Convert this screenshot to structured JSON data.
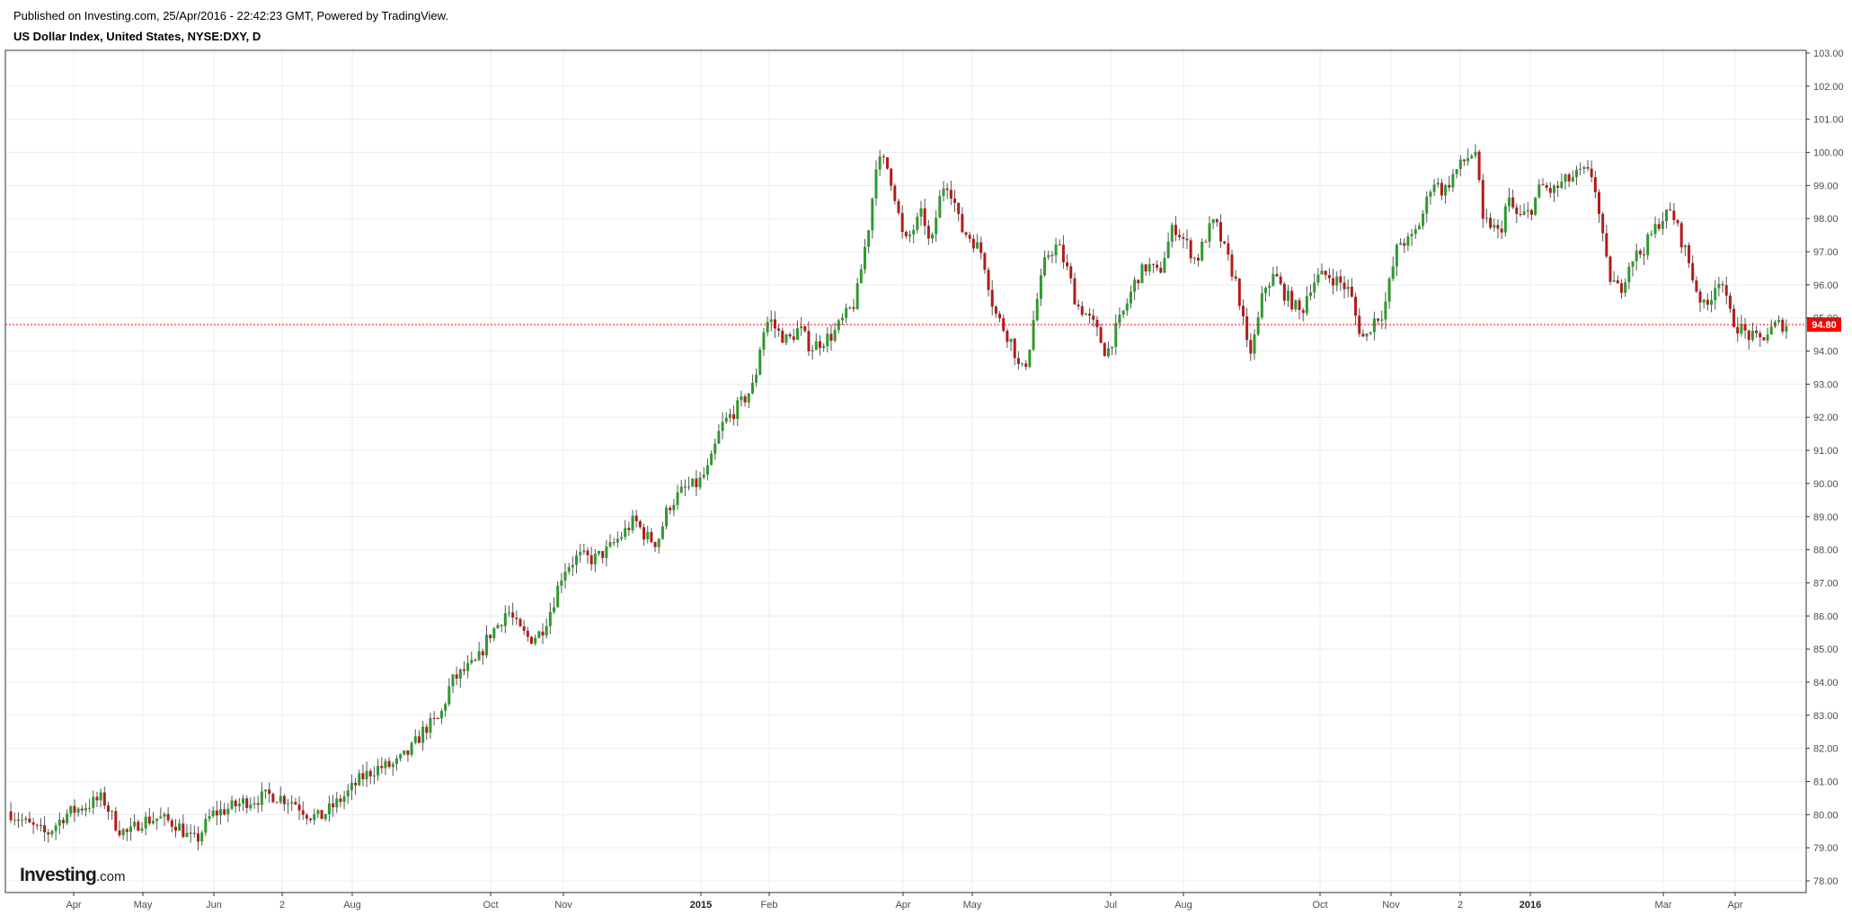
{
  "header": {
    "published": "Published on Investing.com, 25/Apr/2016 - 22:42:23 GMT, Powered by TradingView.",
    "title": "US Dollar Index, United States, NYSE:DXY, D"
  },
  "logo": {
    "name": "Investing",
    "suffix": ".com"
  },
  "price_badge": "94.80",
  "colors": {
    "up": "#2e9a2e",
    "down": "#b31b1b",
    "wick": "#555555",
    "price_line": "#ff0000",
    "badge_bg": "#ff0000",
    "grid": "#ececec",
    "axis": "#333333"
  },
  "chart_data": {
    "type": "candlestick",
    "title": "US Dollar Index, United States, NYSE:DXY, D",
    "ylim": [
      77.7,
      103.1
    ],
    "y_ticks": [
      "78.00",
      "79.00",
      "80.00",
      "81.00",
      "82.00",
      "83.00",
      "84.00",
      "85.00",
      "86.00",
      "87.00",
      "88.00",
      "89.00",
      "90.00",
      "91.00",
      "92.00",
      "93.00",
      "94.00",
      "95.00",
      "96.00",
      "97.00",
      "98.00",
      "99.00",
      "100.00",
      "101.00",
      "102.00",
      "103.00"
    ],
    "x_ticks": [
      {
        "label": "Apr",
        "bold": false
      },
      {
        "label": "May",
        "bold": false
      },
      {
        "label": "Jun",
        "bold": false
      },
      {
        "label": "2",
        "bold": false
      },
      {
        "label": "Aug",
        "bold": false
      },
      {
        "label": "Oct",
        "bold": false
      },
      {
        "label": "Nov",
        "bold": false
      },
      {
        "label": "2015",
        "bold": true
      },
      {
        "label": "Feb",
        "bold": false
      },
      {
        "label": "Apr",
        "bold": false
      },
      {
        "label": "May",
        "bold": false
      },
      {
        "label": "Jul",
        "bold": false
      },
      {
        "label": "Aug",
        "bold": false
      },
      {
        "label": "Oct",
        "bold": false
      },
      {
        "label": "Nov",
        "bold": false
      },
      {
        "label": "2",
        "bold": false
      },
      {
        "label": "2016",
        "bold": true
      },
      {
        "label": "Mar",
        "bold": false
      },
      {
        "label": "Apr",
        "bold": false
      }
    ],
    "last_price": 94.8,
    "grid": true,
    "close_path": [
      [
        0,
        80.1
      ],
      [
        10,
        79.7
      ],
      [
        20,
        79.4
      ],
      [
        30,
        80.0
      ],
      [
        42,
        80.3
      ],
      [
        50,
        80.5
      ],
      [
        58,
        79.6
      ],
      [
        64,
        79.4
      ],
      [
        70,
        79.8
      ],
      [
        80,
        79.9
      ],
      [
        90,
        79.7
      ],
      [
        96,
        79.3
      ],
      [
        100,
        79.2
      ],
      [
        108,
        80.0
      ],
      [
        118,
        80.2
      ],
      [
        126,
        80.4
      ],
      [
        134,
        80.5
      ],
      [
        140,
        80.6
      ],
      [
        146,
        80.5
      ],
      [
        152,
        80.4
      ],
      [
        160,
        80.0
      ],
      [
        166,
        79.9
      ],
      [
        172,
        80.2
      ],
      [
        180,
        80.6
      ],
      [
        188,
        81.1
      ],
      [
        196,
        81.4
      ],
      [
        206,
        81.5
      ],
      [
        214,
        81.9
      ],
      [
        222,
        82.6
      ],
      [
        230,
        82.9
      ],
      [
        236,
        84.0
      ],
      [
        242,
        84.3
      ],
      [
        250,
        84.6
      ],
      [
        256,
        85.4
      ],
      [
        262,
        85.8
      ],
      [
        266,
        86.2
      ],
      [
        272,
        85.6
      ],
      [
        278,
        85.3
      ],
      [
        284,
        85.5
      ],
      [
        290,
        86.3
      ],
      [
        296,
        87.4
      ],
      [
        304,
        87.8
      ],
      [
        312,
        87.7
      ],
      [
        320,
        88.0
      ],
      [
        328,
        88.5
      ],
      [
        334,
        88.9
      ],
      [
        340,
        88.4
      ],
      [
        346,
        88.2
      ],
      [
        352,
        89.3
      ],
      [
        360,
        89.8
      ],
      [
        368,
        90.0
      ],
      [
        374,
        90.5
      ],
      [
        380,
        91.7
      ],
      [
        386,
        92.1
      ],
      [
        392,
        92.5
      ],
      [
        398,
        93.0
      ],
      [
        402,
        94.5
      ],
      [
        406,
        95.0
      ],
      [
        410,
        94.6
      ],
      [
        416,
        94.3
      ],
      [
        422,
        94.7
      ],
      [
        428,
        94.1
      ],
      [
        434,
        94.3
      ],
      [
        440,
        94.5
      ],
      [
        446,
        95.0
      ],
      [
        452,
        95.5
      ],
      [
        456,
        96.8
      ],
      [
        460,
        98.1
      ],
      [
        463,
        99.7
      ],
      [
        468,
        99.7
      ],
      [
        472,
        99.0
      ],
      [
        478,
        97.2
      ],
      [
        484,
        97.8
      ],
      [
        488,
        98.2
      ],
      [
        492,
        97.0
      ],
      [
        496,
        98.4
      ],
      [
        500,
        99.2
      ],
      [
        504,
        98.7
      ],
      [
        508,
        97.7
      ],
      [
        514,
        97.4
      ],
      [
        520,
        96.9
      ],
      [
        526,
        95.2
      ],
      [
        532,
        94.6
      ],
      [
        536,
        94.2
      ],
      [
        540,
        93.3
      ],
      [
        544,
        93.8
      ],
      [
        548,
        95.3
      ],
      [
        554,
        96.9
      ],
      [
        560,
        97.2
      ],
      [
        566,
        96.3
      ],
      [
        570,
        95.4
      ],
      [
        574,
        95.2
      ],
      [
        580,
        94.7
      ],
      [
        586,
        93.9
      ],
      [
        590,
        94.5
      ],
      [
        596,
        95.3
      ],
      [
        602,
        96.2
      ],
      [
        608,
        96.6
      ],
      [
        614,
        96.3
      ],
      [
        618,
        97.1
      ],
      [
        622,
        97.8
      ],
      [
        628,
        97.3
      ],
      [
        634,
        96.7
      ],
      [
        640,
        97.6
      ],
      [
        644,
        97.9
      ],
      [
        648,
        97.2
      ],
      [
        652,
        96.6
      ],
      [
        656,
        95.9
      ],
      [
        662,
        93.8
      ],
      [
        666,
        94.6
      ],
      [
        670,
        95.9
      ],
      [
        676,
        96.3
      ],
      [
        680,
        95.8
      ],
      [
        686,
        95.4
      ],
      [
        690,
        95.1
      ],
      [
        694,
        95.9
      ],
      [
        698,
        96.2
      ],
      [
        704,
        96.3
      ],
      [
        710,
        96.1
      ],
      [
        716,
        95.8
      ],
      [
        720,
        94.8
      ],
      [
        724,
        94.3
      ],
      [
        728,
        94.9
      ],
      [
        734,
        95.2
      ],
      [
        738,
        96.3
      ],
      [
        742,
        97.3
      ],
      [
        748,
        97.3
      ],
      [
        752,
        97.7
      ],
      [
        756,
        98.3
      ],
      [
        760,
        99.2
      ],
      [
        766,
        98.8
      ],
      [
        772,
        99.4
      ],
      [
        778,
        99.8
      ],
      [
        784,
        100.1
      ],
      [
        786,
        97.8
      ],
      [
        790,
        97.9
      ],
      [
        796,
        97.5
      ],
      [
        800,
        98.6
      ],
      [
        806,
        98.0
      ],
      [
        812,
        98.2
      ],
      [
        818,
        99.0
      ],
      [
        824,
        98.8
      ],
      [
        830,
        99.1
      ],
      [
        834,
        99.2
      ],
      [
        840,
        99.4
      ],
      [
        846,
        99.3
      ],
      [
        850,
        97.7
      ],
      [
        854,
        96.3
      ],
      [
        860,
        95.8
      ],
      [
        866,
        96.8
      ],
      [
        872,
        97.0
      ],
      [
        878,
        97.6
      ],
      [
        882,
        98.0
      ],
      [
        888,
        98.2
      ],
      [
        892,
        97.5
      ],
      [
        896,
        96.9
      ],
      [
        900,
        96.0
      ],
      [
        906,
        95.2
      ],
      [
        910,
        95.9
      ],
      [
        914,
        96.3
      ],
      [
        918,
        95.2
      ],
      [
        922,
        94.8
      ],
      [
        928,
        94.5
      ],
      [
        934,
        94.3
      ],
      [
        938,
        94.5
      ],
      [
        944,
        94.8
      ],
      [
        950,
        94.8
      ]
    ]
  }
}
